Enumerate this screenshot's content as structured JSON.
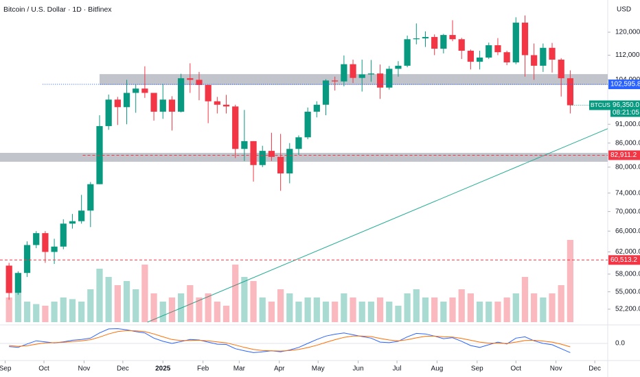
{
  "chart_data": {
    "type": "candlestick",
    "title": "Bitcoin / U.S. Dollar · 1D · Bitfinex",
    "currency": "USD",
    "log_scale": true,
    "xlim": [
      -4,
      466
    ],
    "xticks": [
      {
        "value": 0,
        "label": "Sep"
      },
      {
        "value": 30,
        "label": "Oct"
      },
      {
        "value": 61,
        "label": "Nov"
      },
      {
        "value": 91,
        "label": "Dec"
      },
      {
        "value": 122,
        "label": "2025"
      },
      {
        "value": 153,
        "label": "Feb"
      },
      {
        "value": 181,
        "label": "Mar"
      },
      {
        "value": 212,
        "label": "Apr"
      },
      {
        "value": 242,
        "label": "May"
      },
      {
        "value": 273,
        "label": "Jun"
      },
      {
        "value": 303,
        "label": "Jul"
      },
      {
        "value": 334,
        "label": "Aug"
      },
      {
        "value": 365,
        "label": "Sep"
      },
      {
        "value": 395,
        "label": "Oct"
      },
      {
        "value": 426,
        "label": "Nov"
      },
      {
        "value": 456,
        "label": "Dec"
      }
    ],
    "ylim": [
      50200,
      132200
    ],
    "yticks": [
      {
        "value": 120000,
        "label": "120,000.0"
      },
      {
        "value": 112000,
        "label": "112,000.0"
      },
      {
        "value": 104000,
        "label": "104,000.0"
      },
      {
        "value": 91000,
        "label": "91,000.0"
      },
      {
        "value": 86000,
        "label": "86,000.0"
      },
      {
        "value": 80000,
        "label": "80,000.0"
      },
      {
        "value": 74000,
        "label": "74,000.0"
      },
      {
        "value": 70000,
        "label": "70,000.0"
      },
      {
        "value": 66000,
        "label": "66,000.0"
      },
      {
        "value": 62000,
        "label": "62,000.0"
      },
      {
        "value": 58000,
        "label": "58,000.0"
      },
      {
        "value": 55000,
        "label": "55,000.0"
      },
      {
        "value": 52200,
        "label": "52,200.0"
      }
    ],
    "x": [
      3,
      10,
      17,
      24,
      31,
      38,
      45,
      52,
      59,
      66,
      73,
      80,
      87,
      94,
      101,
      108,
      115,
      122,
      129,
      136,
      143,
      150,
      157,
      164,
      171,
      178,
      185,
      192,
      199,
      206,
      213,
      220,
      227,
      234,
      241,
      248,
      255,
      262,
      269,
      276,
      283,
      290,
      297,
      304,
      311,
      318,
      325,
      332,
      339,
      346,
      353,
      360,
      367,
      374,
      381,
      388,
      395,
      402,
      409,
      416,
      423,
      430,
      437
    ],
    "series": [
      {
        "name": "BTCUSD",
        "up_color": "#089981",
        "down_color": "#f23645",
        "open": [
          59500,
          54800,
          58200,
          63300,
          65600,
          62000,
          63000,
          67500,
          68000,
          70200,
          76000,
          90500,
          98000,
          95800,
          100000,
          101300,
          100000,
          94500,
          98000,
          94500,
          104500,
          104000,
          102400,
          97500,
          96500,
          96000,
          84500,
          86500,
          80500,
          84000,
          82500,
          78500,
          84500,
          87500,
          94500,
          96500,
          103800,
          103500,
          109000,
          104600,
          105700,
          106000,
          101600,
          107500,
          108500,
          117500,
          117800,
          118300,
          114200,
          119000,
          117500,
          113500,
          109800,
          111200,
          115400,
          113000,
          109600,
          123500,
          112000,
          108500,
          114500,
          110500,
          104500
        ],
        "high": [
          60000,
          58500,
          64000,
          66000,
          66000,
          64500,
          68400,
          69500,
          73600,
          76500,
          93500,
          99500,
          98800,
          104000,
          102500,
          108300,
          100000,
          102700,
          99000,
          105900,
          109300,
          106500,
          102500,
          98800,
          99400,
          96500,
          95000,
          86500,
          85300,
          88700,
          88400,
          86000,
          88000,
          95700,
          97500,
          104200,
          105000,
          111900,
          110500,
          110500,
          110400,
          108900,
          108400,
          110000,
          118800,
          123200,
          120300,
          119200,
          119400,
          124400,
          118000,
          113900,
          113500,
          116300,
          117900,
          113500,
          125500,
          126200,
          116000,
          116000,
          116200,
          111000,
          107000
        ],
        "low": [
          53700,
          54500,
          57500,
          62700,
          60000,
          59800,
          62500,
          66500,
          67500,
          66800,
          76000,
          89500,
          90800,
          91000,
          94200,
          98500,
          92000,
          92500,
          89300,
          94300,
          100000,
          97800,
          91300,
          94000,
          94000,
          82200,
          81500,
          76600,
          80000,
          81500,
          74500,
          76200,
          83000,
          87000,
          92900,
          93500,
          100700,
          102000,
          103000,
          100400,
          103400,
          98200,
          101000,
          105000,
          108000,
          115700,
          114800,
          112000,
          112600,
          116800,
          110700,
          107300,
          107300,
          110700,
          112000,
          108700,
          109000,
          105000,
          104000,
          106500,
          106300,
          98900,
          94000
        ],
        "close": [
          54800,
          58200,
          63300,
          65600,
          62000,
          63000,
          67500,
          68000,
          70200,
          76000,
          90500,
          98000,
          95800,
          100000,
          101300,
          100000,
          94500,
          98000,
          94500,
          104500,
          104000,
          102400,
          97500,
          96500,
          96000,
          84500,
          86500,
          80500,
          84000,
          82500,
          78500,
          84500,
          87500,
          94500,
          96500,
          103800,
          103500,
          109000,
          104600,
          105700,
          106000,
          101600,
          107500,
          108500,
          117500,
          117800,
          118300,
          114200,
          119000,
          117500,
          113500,
          109800,
          111200,
          115400,
          113000,
          109600,
          123500,
          112000,
          108500,
          114500,
          110500,
          104500,
          96350
        ],
        "volume": [
          30,
          35,
          25,
          22,
          20,
          25,
          30,
          28,
          25,
          40,
          65,
          55,
          45,
          50,
          40,
          70,
          35,
          25,
          30,
          35,
          45,
          30,
          35,
          25,
          20,
          70,
          55,
          50,
          30,
          25,
          40,
          35,
          25,
          30,
          30,
          25,
          25,
          35,
          30,
          25,
          25,
          30,
          25,
          20,
          35,
          40,
          30,
          30,
          25,
          30,
          40,
          35,
          25,
          25,
          25,
          30,
          35,
          55,
          35,
          30,
          35,
          45,
          100
        ]
      }
    ],
    "volume_ylim": [
      0,
      100
    ],
    "last_price": {
      "value": 96350,
      "label": "96,350.0"
    },
    "countdown": "08:21:05",
    "levels": [
      {
        "value": 102595.8,
        "label": "102,595.8",
        "color": "#2962ff",
        "style": "dotted",
        "start": 29
      },
      {
        "value": 82911.2,
        "label": "82,911.2",
        "color": "#f23645",
        "style": "dashed",
        "start": 60
      },
      {
        "value": 60513.2,
        "label": "60,513.2",
        "color": "#f23645",
        "style": "dashed",
        "start": -4
      }
    ],
    "zones": [
      {
        "low": 102400,
        "high": 105800,
        "start": 73,
        "color": "#b2b5be"
      },
      {
        "low": 81300,
        "high": 83500,
        "start": -4,
        "color": "#b2b5be"
      }
    ],
    "trendline": {
      "x": [
        110,
        466
      ],
      "y": [
        50200,
        89800
      ],
      "color": "#22ab94"
    },
    "macd": {
      "ylim": [
        -6000,
        6000
      ],
      "yticks": [
        {
          "value": 0,
          "label": "0.0"
        }
      ],
      "series": [
        {
          "color": "#2962ff",
          "values": [
            -1200,
            -1500,
            -200,
            1000,
            600,
            200,
            600,
            1200,
            1500,
            2000,
            4000,
            5500,
            5600,
            5200,
            4500,
            4000,
            2000,
            800,
            0,
            700,
            1500,
            1300,
            500,
            -300,
            -400,
            -2000,
            -2800,
            -3500,
            -3200,
            -2800,
            -3200,
            -2500,
            -1500,
            0,
            1500,
            2800,
            3500,
            4000,
            3300,
            2600,
            2000,
            500,
            300,
            800,
            2500,
            3800,
            3600,
            2800,
            1800,
            2200,
            800,
            -800,
            -1500,
            -500,
            500,
            -200,
            2000,
            2500,
            1000,
            0,
            -500,
            -2000,
            -3500
          ]
        },
        {
          "color": "#ff6d00",
          "values": [
            -800,
            -1100,
            -900,
            -300,
            200,
            300,
            400,
            700,
            1000,
            1400,
            2400,
            3600,
            4500,
            4900,
            4800,
            4500,
            3600,
            2500,
            1500,
            1100,
            1100,
            1200,
            1000,
            600,
            200,
            -600,
            -1500,
            -2300,
            -2700,
            -2800,
            -2900,
            -2700,
            -2300,
            -1600,
            -700,
            400,
            1400,
            2300,
            2800,
            2800,
            2600,
            1900,
            1300,
            1000,
            1400,
            2100,
            2700,
            2800,
            2500,
            2400,
            1900,
            1200,
            500,
            100,
            100,
            0,
            500,
            1100,
            1200,
            900,
            500,
            -300,
            -1300
          ]
        }
      ]
    }
  }
}
